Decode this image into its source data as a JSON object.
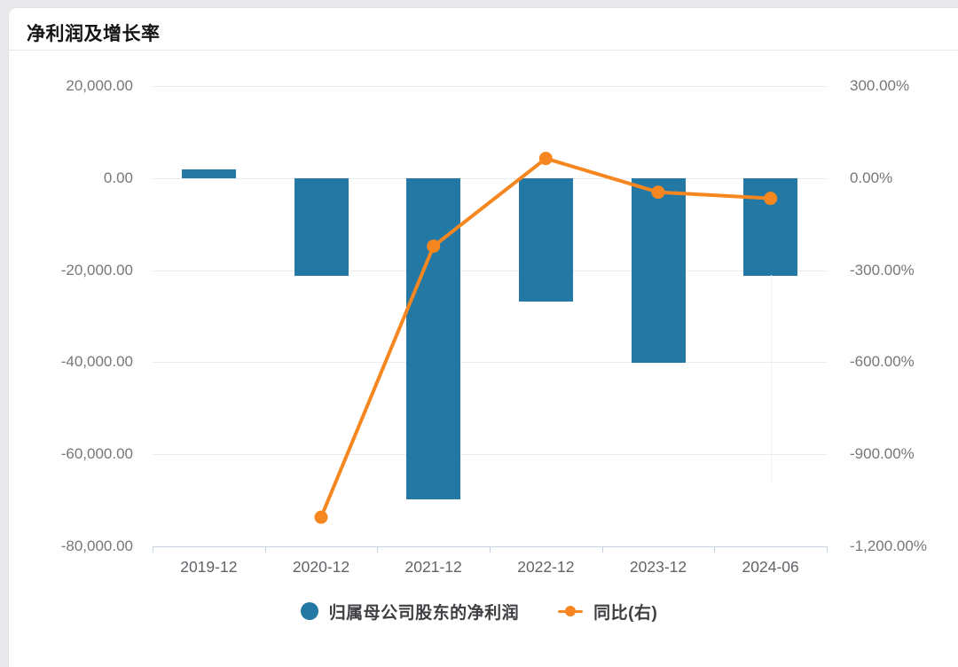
{
  "page": {
    "title": "净利润及增长率"
  },
  "chart_data": {
    "type": "bar",
    "categories": [
      "2019-12",
      "2020-12",
      "2021-12",
      "2022-12",
      "2023-12",
      "2024-06"
    ],
    "series": [
      {
        "name": "归属母公司股东的净利润",
        "type": "bar",
        "axis": "left",
        "color": "#2478a4",
        "values": [
          1900,
          -21200,
          -69700,
          -26800,
          -40100,
          -21200
        ]
      },
      {
        "name": "同比(右)",
        "type": "line",
        "axis": "right",
        "color": "#f6861f",
        "values": [
          null,
          -1105,
          -222,
          64,
          -46,
          -66
        ]
      }
    ],
    "left_axis": {
      "min": -80000,
      "max": 20000,
      "interval": 20000,
      "tick_labels": [
        "20,000.00",
        "0.00",
        "-20,000.00",
        "-40,000.00",
        "-60,000.00",
        "-80,000.00"
      ]
    },
    "right_axis": {
      "min": -1200,
      "max": 300,
      "interval": 300,
      "tick_labels": [
        "300.00%",
        "0.00%",
        "-300.00%",
        "-600.00%",
        "-900.00%",
        "-1,200.00%"
      ]
    },
    "grid": true,
    "legend_position": "bottom"
  },
  "legend": {
    "items": [
      {
        "label": "归属母公司股东的净利润",
        "color": "#2478a4",
        "marker": "circle"
      },
      {
        "label": "同比(右)",
        "color": "#f6861f",
        "marker": "line-dot"
      }
    ]
  },
  "colors": {
    "bar": "#2478a4",
    "line": "#f6861f",
    "grid": "#ececec",
    "axis": "#c7d3e0",
    "axis_text": "#757779",
    "title_text": "#141414",
    "card_bg": "#ffffff",
    "page_bg": "#e9e9ec"
  }
}
